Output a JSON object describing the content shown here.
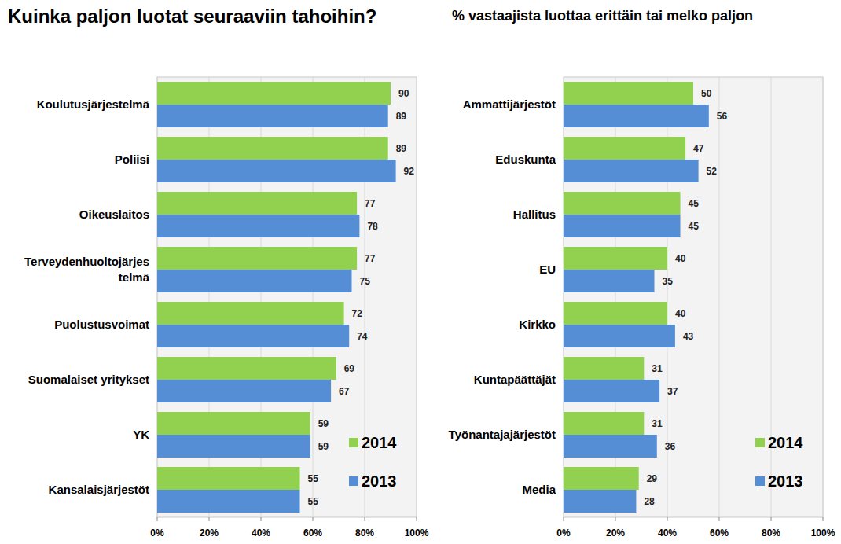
{
  "chart_data": [
    {
      "type": "bar",
      "orientation": "horizontal",
      "title": "Kuinka paljon luotat seuraaviin tahoihin?",
      "categories": [
        "Koulutusjärjestelmä",
        "Poliisi",
        "Oikeuslaitos",
        "Terveydenhuoltojärjes\ntelmä",
        "Puolustusvoimat",
        "Suomalaiset yritykset",
        "YK",
        "Kansalaisjärjestöt"
      ],
      "series": [
        {
          "name": "2014",
          "color": "#92d050",
          "values": [
            90,
            89,
            77,
            77,
            72,
            69,
            59,
            55
          ]
        },
        {
          "name": "2013",
          "color": "#558ed5",
          "values": [
            89,
            92,
            78,
            75,
            74,
            67,
            59,
            55
          ]
        }
      ],
      "xlim": [
        0,
        100
      ],
      "xticks": [
        {
          "value": 0,
          "label": "0%"
        },
        {
          "value": 20,
          "label": "20%"
        },
        {
          "value": 40,
          "label": "40%"
        },
        {
          "value": 60,
          "label": "60%"
        },
        {
          "value": 80,
          "label": "80%"
        },
        {
          "value": 100,
          "label": "100%"
        }
      ],
      "grid": true,
      "data_labels": true,
      "legend": "lower right"
    },
    {
      "type": "bar",
      "orientation": "horizontal",
      "subtitle": "% vastaajista luottaa erittäin tai melko paljon",
      "categories": [
        "Ammattijärjestöt",
        "Eduskunta",
        "Hallitus",
        "EU",
        "Kirkko",
        "Kuntapäättäjät",
        "Työnantajajärjestöt",
        "Media"
      ],
      "series": [
        {
          "name": "2014",
          "color": "#92d050",
          "values": [
            50,
            47,
            45,
            40,
            40,
            31,
            31,
            29
          ]
        },
        {
          "name": "2013",
          "color": "#558ed5",
          "values": [
            56,
            52,
            45,
            35,
            43,
            37,
            36,
            28
          ]
        }
      ],
      "xlim": [
        0,
        100
      ],
      "xticks": [
        {
          "value": 0,
          "label": "0%"
        },
        {
          "value": 20,
          "label": "20%"
        },
        {
          "value": 40,
          "label": "40%"
        },
        {
          "value": 60,
          "label": "60%"
        },
        {
          "value": 80,
          "label": "80%"
        },
        {
          "value": 100,
          "label": "100%"
        }
      ],
      "grid": true,
      "data_labels": true,
      "legend": "lower right"
    }
  ]
}
